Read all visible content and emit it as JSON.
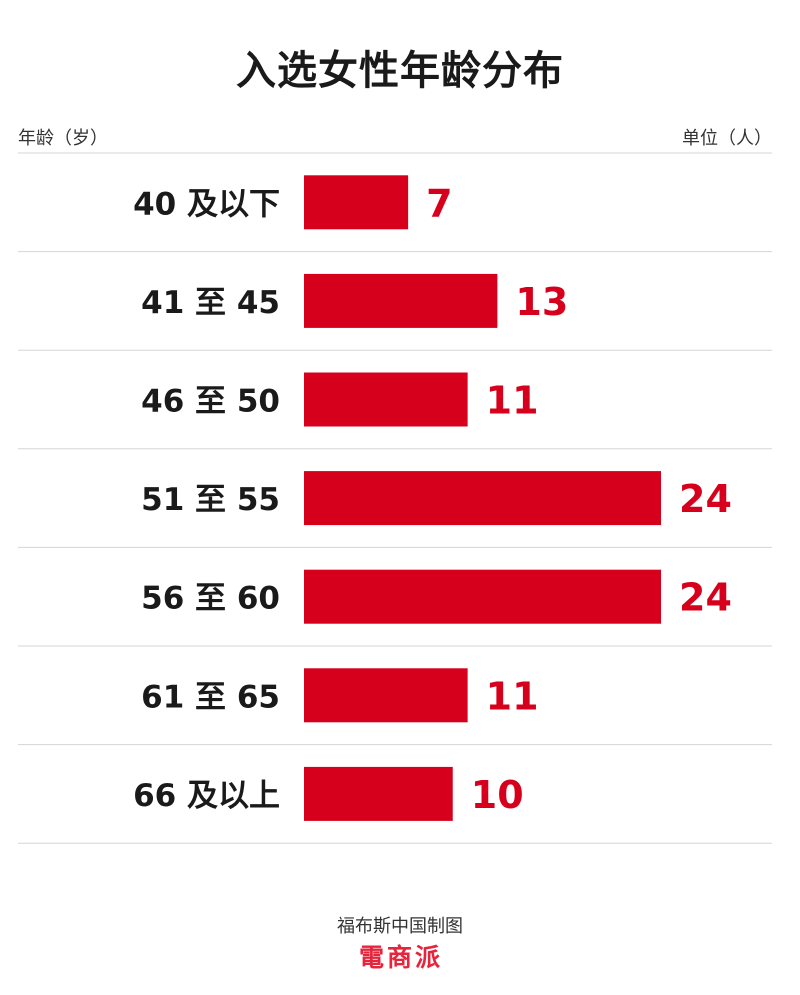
{
  "chart_data": {
    "type": "bar",
    "orientation": "horizontal",
    "title": "入选女性年龄分布",
    "xlabel": "单位（人）",
    "ylabel": "年龄（岁）",
    "categories": [
      "40 及以下",
      "41 至 45",
      "46 至 50",
      "51 至 55",
      "56 至 60",
      "61 至 65",
      "66 及以上"
    ],
    "values": [
      7,
      13,
      11,
      24,
      24,
      11,
      10
    ],
    "xlim": [
      0,
      24
    ],
    "grid": false,
    "bar_color": "#d6001c",
    "value_label_color": "#d6001c"
  },
  "footer": {
    "credit": "福布斯中国制图",
    "logo_text": "電商派"
  }
}
